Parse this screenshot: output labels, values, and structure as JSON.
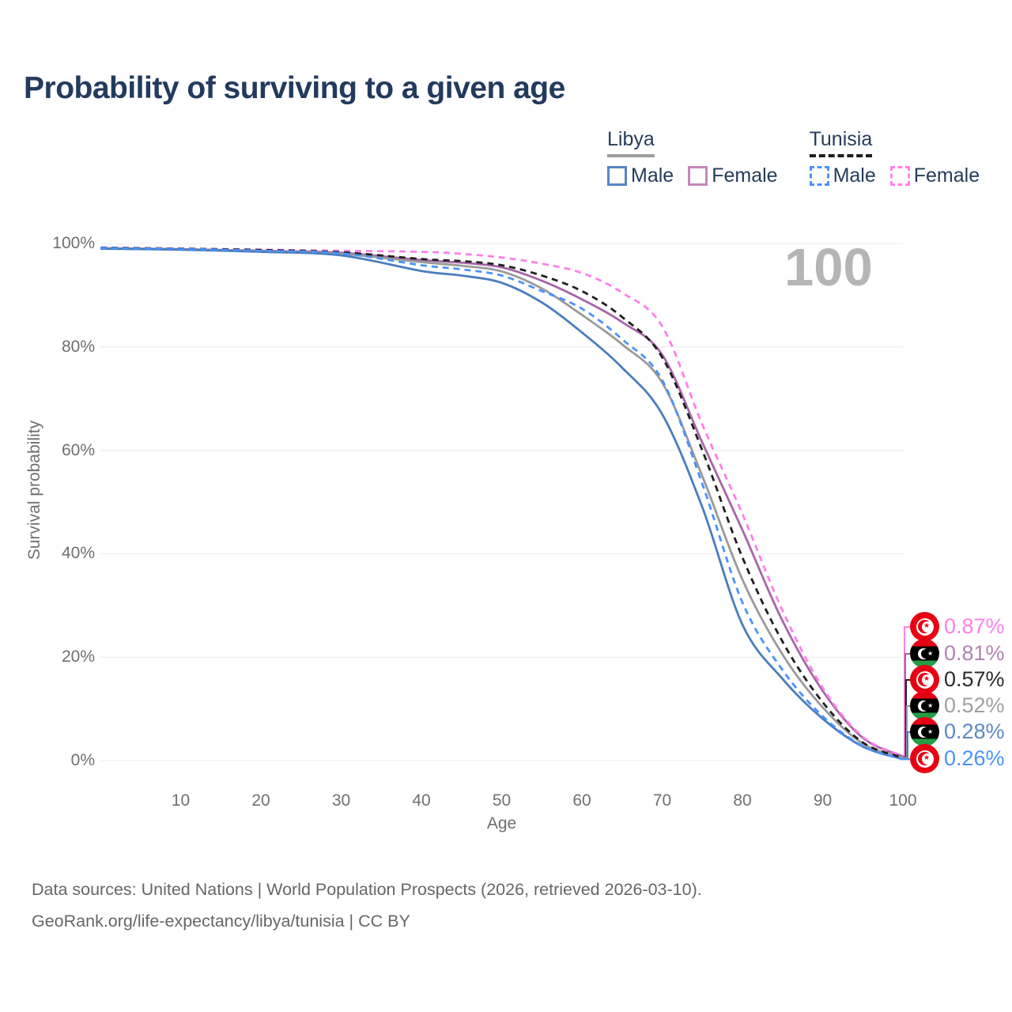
{
  "title": "Probability of surviving to a given age",
  "watermark": "100",
  "legend": {
    "groups": [
      {
        "title": "Libya",
        "underline_style": "solid",
        "underline_color": "#9e9e9e",
        "items": [
          {
            "label": "Male",
            "color": "#5b84c4",
            "dashed": false
          },
          {
            "label": "Female",
            "color": "#c289ba",
            "dashed": false
          }
        ]
      },
      {
        "title": "Tunisia",
        "underline_style": "dashed",
        "underline_color": "#1f1f1f",
        "items": [
          {
            "label": "Male",
            "color": "#4b92ff",
            "dashed": true
          },
          {
            "label": "Female",
            "color": "#ff85f0",
            "dashed": true
          }
        ]
      }
    ]
  },
  "chart_data": {
    "type": "line",
    "title": "Probability of surviving to a given age",
    "xlabel": "Age",
    "ylabel": "Survival probability",
    "xlim": [
      0,
      100
    ],
    "ylim": [
      0,
      100
    ],
    "grid": "horizontal-only",
    "x_ticks": [
      10,
      20,
      30,
      40,
      50,
      60,
      70,
      80,
      90,
      100
    ],
    "y_ticks": [
      0,
      20,
      40,
      60,
      80,
      100
    ],
    "y_tick_suffix": "%",
    "legend_position": "top-right",
    "x": [
      0,
      10,
      20,
      30,
      40,
      45,
      50,
      55,
      60,
      65,
      70,
      75,
      80,
      85,
      90,
      95,
      100
    ],
    "series": [
      {
        "name": "Libya Female",
        "country": "Libya",
        "sex": "Female",
        "color": "#a765a7",
        "dash": false,
        "values": [
          99.1,
          98.9,
          98.6,
          98.2,
          96.8,
          96.3,
          95.4,
          92.8,
          89.2,
          84.8,
          78.5,
          61.5,
          44.6,
          27.0,
          13.5,
          4.4,
          0.81
        ]
      },
      {
        "name": "Libya Both sexes",
        "country": "Libya",
        "sex": "Both",
        "color": "#9a9a9a",
        "dash": false,
        "values": [
          99.05,
          98.85,
          98.5,
          98.0,
          96.4,
          95.7,
          94.6,
          91.3,
          86.2,
          80.5,
          73.1,
          55.0,
          35.0,
          20.5,
          10.3,
          3.3,
          0.52
        ]
      },
      {
        "name": "Libya Male",
        "country": "Libya",
        "sex": "Male",
        "color": "#4a7dbd",
        "dash": false,
        "values": [
          99.0,
          98.8,
          98.4,
          97.7,
          94.7,
          93.8,
          92.4,
          88.6,
          82.8,
          76.0,
          67.0,
          49.0,
          26.3,
          15.8,
          8.1,
          2.7,
          0.28
        ]
      },
      {
        "name": "Tunisia Female",
        "country": "Tunisia",
        "sex": "Female",
        "color": "#ff80e8",
        "dash": true,
        "values": [
          99.2,
          99.0,
          98.8,
          98.6,
          98.4,
          98.0,
          97.3,
          96.1,
          94.3,
          90.5,
          84.0,
          65.0,
          47.7,
          29.0,
          14.1,
          4.6,
          0.87
        ]
      },
      {
        "name": "Tunisia Both sexes",
        "country": "Tunisia",
        "sex": "Both",
        "color": "#1f1f1f",
        "dash": true,
        "values": [
          99.2,
          99.0,
          98.75,
          98.3,
          97.0,
          96.6,
          95.8,
          93.8,
          90.8,
          85.8,
          78.0,
          60.0,
          39.3,
          23.0,
          11.3,
          3.5,
          0.57
        ]
      },
      {
        "name": "Tunisia Male",
        "country": "Tunisia",
        "sex": "Male",
        "color": "#4b92ff",
        "dash": true,
        "values": [
          99.15,
          98.95,
          98.6,
          98.1,
          95.8,
          95.0,
          93.8,
          90.8,
          87.4,
          81.5,
          73.6,
          53.5,
          30.6,
          17.5,
          8.6,
          2.8,
          0.26
        ]
      }
    ]
  },
  "end_labels": [
    {
      "value": "0.87%",
      "flag": "tunisia",
      "color": "#ff80e8",
      "series": "Tunisia Female"
    },
    {
      "value": "0.81%",
      "flag": "libya",
      "color": "#b383b3",
      "series": "Libya Female"
    },
    {
      "value": "0.57%",
      "flag": "tunisia",
      "color": "#2b2b2b",
      "series": "Tunisia Both sexes"
    },
    {
      "value": "0.52%",
      "flag": "libya",
      "color": "#a0a0a0",
      "series": "Libya Both sexes"
    },
    {
      "value": "0.28%",
      "flag": "libya",
      "color": "#5e87c9",
      "series": "Libya Male"
    },
    {
      "value": "0.26%",
      "flag": "tunisia",
      "color": "#4b92ff",
      "series": "Tunisia Male"
    }
  ],
  "footer": {
    "line1": "Data sources: United Nations | World Population Prospects (2026, retrieved 2026-03-10).",
    "line2": "GeoRank.org/life-expectancy/libya/tunisia | CC BY"
  }
}
